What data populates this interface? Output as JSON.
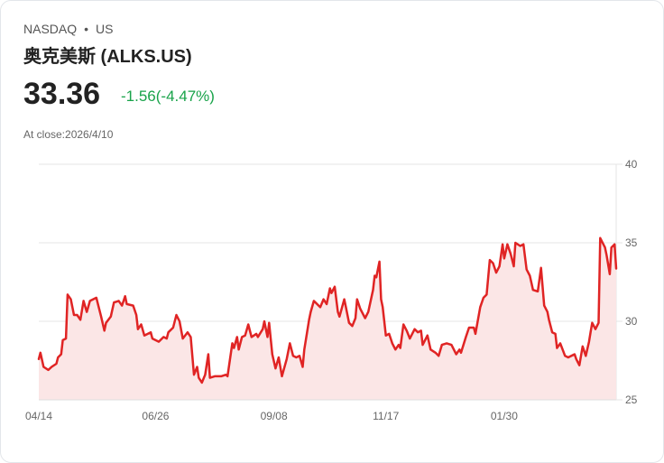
{
  "header": {
    "exchange": "NASDAQ",
    "separator": "•",
    "market": "US",
    "title": "奥克美斯 (ALKS.US)",
    "price": "33.36",
    "change": "-1.56(-4.47%)",
    "close_label": "At close:2026/4/10"
  },
  "colors": {
    "line": "#e02424",
    "fill": "#fbe6e6",
    "positive_change": "#19a34a",
    "grid": "#e4e4e4"
  },
  "chart_data": {
    "type": "area",
    "title": "",
    "xlabel": "",
    "ylabel": "",
    "ylim": [
      25,
      40
    ],
    "xlim": [
      0,
      361
    ],
    "y_ticks": [
      {
        "value": 40,
        "label": "40"
      },
      {
        "value": 35,
        "label": "35"
      },
      {
        "value": 30,
        "label": "30"
      },
      {
        "value": 25,
        "label": "25"
      }
    ],
    "x_ticks": [
      {
        "day": 0,
        "label": "04/14"
      },
      {
        "day": 73,
        "label": "06/26"
      },
      {
        "day": 147,
        "label": "09/08"
      },
      {
        "day": 217,
        "label": "11/17"
      },
      {
        "day": 291,
        "label": "01/30"
      }
    ],
    "y_axis_position": "right",
    "grid": true,
    "x_unit": "days since 04/14",
    "x": [
      0,
      1,
      3,
      6,
      8,
      11,
      12,
      14,
      15,
      17,
      18,
      20,
      22,
      24,
      26,
      28,
      30,
      32,
      36,
      39,
      41,
      42,
      45,
      47,
      50,
      52,
      54,
      55,
      59,
      61,
      62,
      64,
      66,
      70,
      71,
      75,
      78,
      80,
      81,
      84,
      86,
      88,
      90,
      93,
      95,
      97,
      99,
      100,
      102,
      104,
      106,
      107,
      110,
      114,
      117,
      118,
      121,
      122,
      124,
      125,
      127,
      129,
      131,
      133,
      136,
      137,
      140,
      141,
      143,
      144,
      146,
      148,
      150,
      152,
      155,
      157,
      159,
      161,
      163,
      165,
      166,
      169,
      170,
      172,
      175,
      176,
      178,
      180,
      182,
      183,
      185,
      187,
      188,
      191,
      192,
      194,
      196,
      198,
      199,
      201,
      204,
      206,
      209,
      210,
      211,
      213,
      214,
      215,
      217,
      219,
      221,
      223,
      225,
      226,
      228,
      230,
      232,
      235,
      237,
      239,
      240,
      243,
      245,
      248,
      250,
      252,
      255,
      258,
      261,
      263,
      264,
      267,
      269,
      272,
      273,
      276,
      278,
      280,
      282,
      284,
      286,
      288,
      290,
      291,
      293,
      295,
      297,
      298,
      301,
      303,
      305,
      307,
      309,
      312,
      314,
      316,
      318,
      319,
      321,
      323,
      324,
      326,
      329,
      331,
      335,
      336,
      338,
      340,
      342,
      344,
      345,
      346,
      348,
      350,
      351,
      353,
      354,
      355,
      357,
      358,
      360,
      361
    ],
    "values": [
      27.6,
      28.0,
      27.1,
      26.9,
      27.1,
      27.3,
      27.7,
      27.9,
      28.8,
      28.9,
      31.7,
      31.4,
      30.4,
      30.4,
      30.1,
      31.3,
      30.6,
      31.3,
      31.5,
      30.3,
      29.4,
      29.9,
      30.3,
      31.2,
      31.3,
      31.0,
      31.6,
      31.1,
      31.0,
      30.4,
      29.5,
      29.8,
      29.1,
      29.3,
      28.9,
      28.7,
      29.0,
      28.9,
      29.3,
      29.6,
      30.4,
      30.0,
      28.9,
      29.3,
      29.0,
      26.6,
      27.1,
      26.4,
      26.1,
      26.6,
      27.9,
      26.4,
      26.5,
      26.5,
      26.6,
      26.5,
      28.6,
      28.3,
      29.0,
      28.2,
      29.0,
      29.1,
      29.8,
      29.0,
      29.2,
      29.0,
      29.5,
      30.0,
      29.0,
      29.9,
      27.9,
      27.0,
      27.7,
      26.5,
      27.6,
      28.6,
      27.8,
      27.7,
      27.8,
      27.1,
      28.2,
      30.1,
      30.6,
      31.3,
      31.0,
      30.9,
      31.4,
      31.1,
      32.1,
      31.8,
      32.2,
      30.6,
      30.3,
      31.4,
      30.9,
      29.9,
      29.7,
      30.2,
      31.4,
      30.8,
      30.2,
      30.6,
      32.0,
      32.9,
      32.8,
      33.8,
      31.4,
      30.9,
      29.1,
      29.2,
      28.6,
      28.2,
      28.5,
      28.3,
      29.8,
      29.4,
      28.9,
      29.5,
      29.3,
      29.4,
      28.5,
      29.1,
      28.2,
      28.0,
      27.8,
      28.5,
      28.6,
      28.5,
      27.9,
      28.2,
      28.0,
      29.0,
      29.6,
      29.6,
      29.2,
      30.9,
      31.5,
      31.7,
      33.9,
      33.7,
      33.1,
      33.5,
      34.9,
      34.0,
      34.9,
      34.3,
      33.5,
      35.0,
      34.8,
      34.9,
      33.3,
      32.9,
      32.0,
      31.9,
      33.4,
      31.0,
      30.6,
      30.1,
      29.3,
      29.2,
      28.3,
      28.6,
      27.8,
      27.7,
      27.9,
      27.6,
      27.2,
      28.4,
      27.8,
      28.7,
      29.3,
      29.9,
      29.5,
      29.9,
      35.3,
      34.9,
      34.7,
      34.2,
      33.0,
      34.7,
      34.9,
      33.36
    ]
  }
}
